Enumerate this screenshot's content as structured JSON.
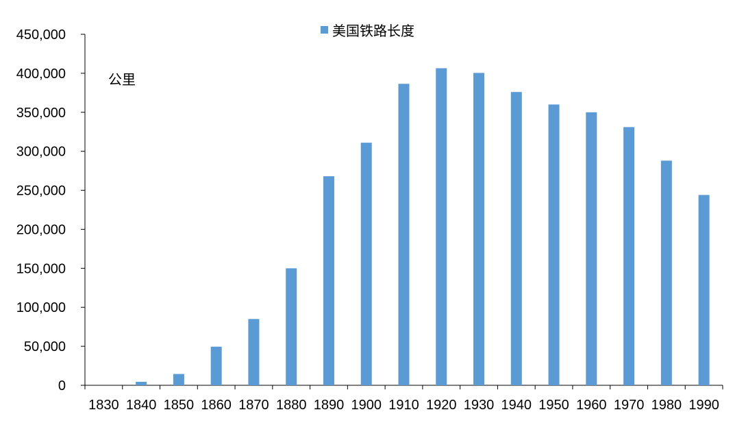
{
  "chart_data": {
    "type": "bar",
    "categories": [
      "1830",
      "1840",
      "1850",
      "1860",
      "1870",
      "1880",
      "1890",
      "1900",
      "1910",
      "1920",
      "1930",
      "1940",
      "1950",
      "1960",
      "1970",
      "1980",
      "1990"
    ],
    "series": [
      {
        "name": "美国铁路长度",
        "values": [
          0,
          4500,
          14500,
          49500,
          85000,
          150000,
          268000,
          311000,
          386500,
          406500,
          400500,
          376000,
          360000,
          350000,
          331000,
          288000,
          244000
        ],
        "color": "#5b9bd5"
      }
    ],
    "ylabel": "公里",
    "ylim": [
      0,
      450000
    ],
    "yticks": [
      0,
      50000,
      100000,
      150000,
      200000,
      250000,
      300000,
      350000,
      400000,
      450000
    ],
    "ytick_labels": [
      "0",
      "50,000",
      "100,000",
      "150,000",
      "200,000",
      "250,000",
      "300,000",
      "350,000",
      "400,000",
      "450,000"
    ],
    "grid": false,
    "legend_position": "top-center"
  }
}
